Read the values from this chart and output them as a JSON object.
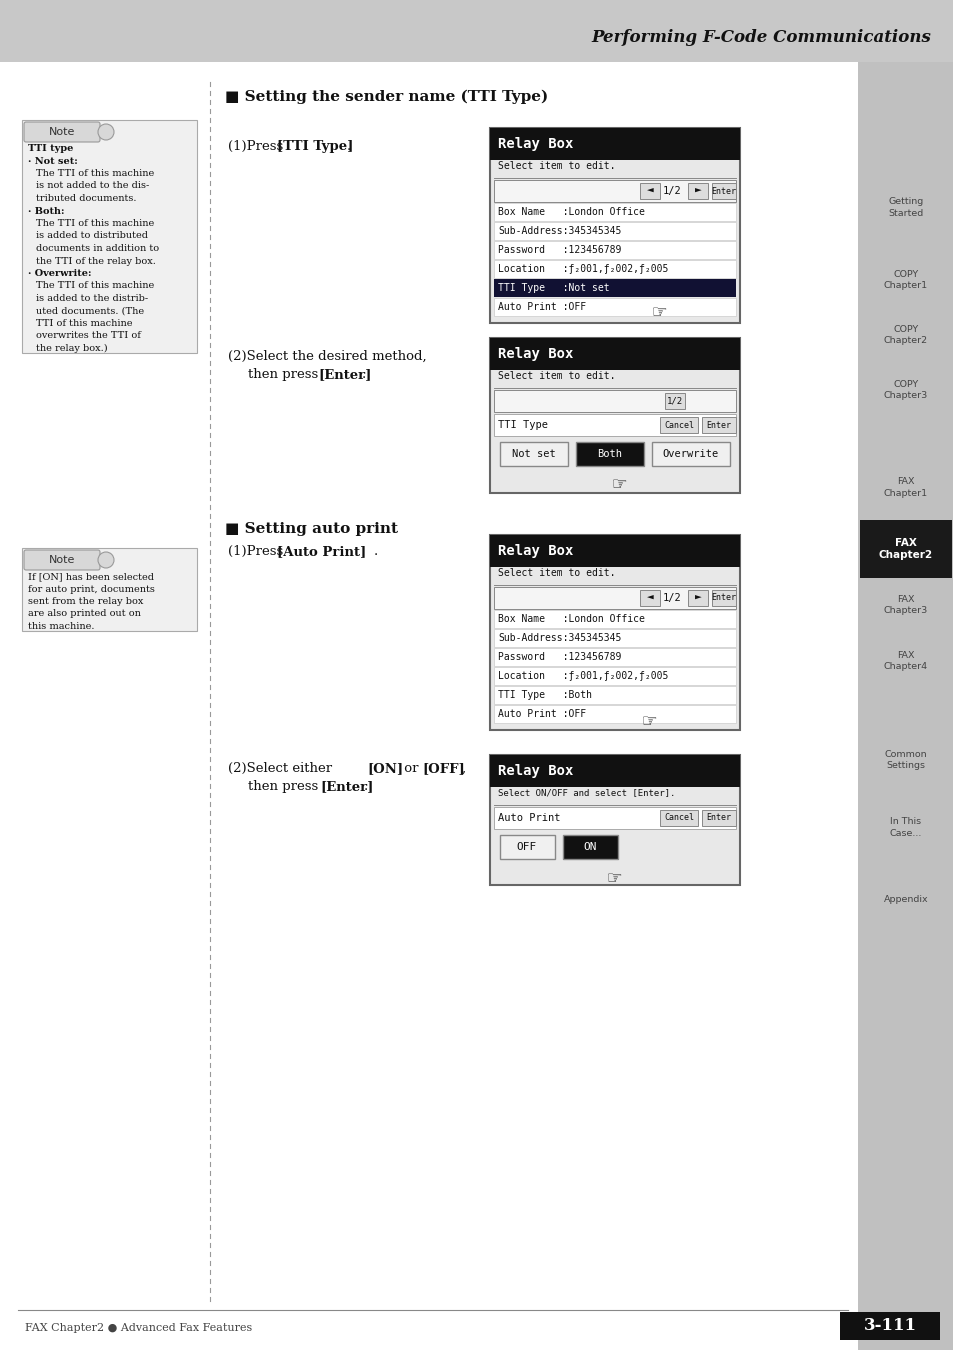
{
  "page_bg": "#ffffff",
  "header_bg": "#c8c8c8",
  "header_text": "Performing F-Code Communications",
  "sidebar_items": [
    {
      "label": "Getting\nStarted",
      "active": false
    },
    {
      "label": "COPY\nChapter1",
      "active": false
    },
    {
      "label": "COPY\nChapter2",
      "active": false
    },
    {
      "label": "COPY\nChapter3",
      "active": false
    },
    {
      "label": "FAX\nChapter1",
      "active": false
    },
    {
      "label": "FAX\nChapter2",
      "active": true
    },
    {
      "label": "FAX\nChapter3",
      "active": false
    },
    {
      "label": "FAX\nChapter4",
      "active": false
    },
    {
      "label": "Common\nSettings",
      "active": false
    },
    {
      "label": "In This\nCase...",
      "active": false
    },
    {
      "label": "Appendix",
      "active": false
    }
  ],
  "note1_lines": [
    {
      "text": "TTI type",
      "bold": true,
      "indent": 0
    },
    {
      "text": "· Not set:",
      "bold": true,
      "indent": 0
    },
    {
      "text": "The TTI of this machine",
      "bold": false,
      "indent": 1
    },
    {
      "text": "is not added to the dis-",
      "bold": false,
      "indent": 1
    },
    {
      "text": "tributed documents.",
      "bold": false,
      "indent": 1
    },
    {
      "text": "· Both:",
      "bold": true,
      "indent": 0
    },
    {
      "text": "The TTI of this machine",
      "bold": false,
      "indent": 1
    },
    {
      "text": "is added to distributed",
      "bold": false,
      "indent": 1
    },
    {
      "text": "documents in addition to",
      "bold": false,
      "indent": 1
    },
    {
      "text": "the TTI of the relay box.",
      "bold": false,
      "indent": 1
    },
    {
      "text": "· Overwrite:",
      "bold": true,
      "indent": 0
    },
    {
      "text": "The TTI of this machine",
      "bold": false,
      "indent": 1
    },
    {
      "text": "is added to the distrib-",
      "bold": false,
      "indent": 1
    },
    {
      "text": "uted documents. (The",
      "bold": false,
      "indent": 1
    },
    {
      "text": "TTI of this machine",
      "bold": false,
      "indent": 1
    },
    {
      "text": "overwrites the TTI of",
      "bold": false,
      "indent": 1
    },
    {
      "text": "the relay box.)",
      "bold": false,
      "indent": 1
    }
  ],
  "note2_lines": [
    {
      "text": "If [ON] has been selected",
      "bold_ranges": [
        [
          3,
          5
        ]
      ]
    },
    {
      "text": "for auto print, documents",
      "bold_ranges": []
    },
    {
      "text": "sent from the relay box",
      "bold_ranges": []
    },
    {
      "text": "are also printed out on",
      "bold_ranges": []
    },
    {
      "text": "this machine.",
      "bold_ranges": []
    }
  ],
  "footer_left": "FAX Chapter2 ● Advanced Fax Features",
  "footer_right": "3-111"
}
